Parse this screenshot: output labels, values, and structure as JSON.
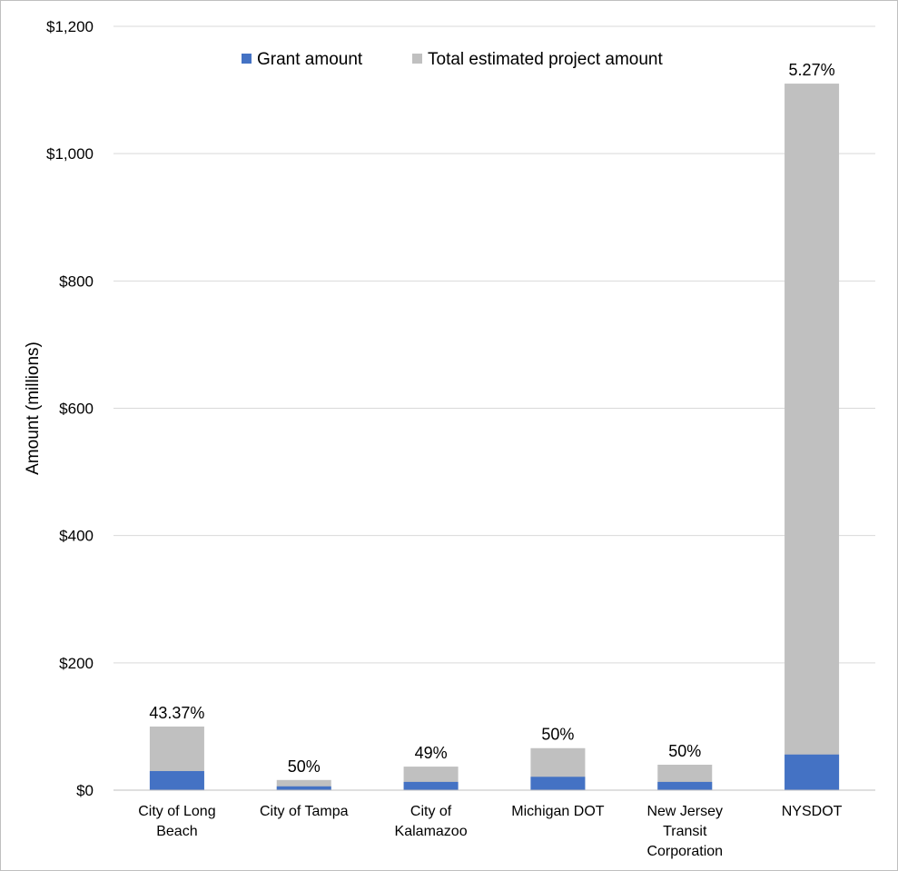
{
  "chart_data": {
    "type": "bar",
    "stacked": true,
    "title": "",
    "xlabel": "",
    "ylabel": "Amount (millions)",
    "ylim": [
      0,
      1200
    ],
    "yticks": [
      0,
      200,
      400,
      600,
      800,
      1000,
      1200
    ],
    "ytick_labels": [
      "$0",
      "$200",
      "$400",
      "$600",
      "$800",
      "$1,000",
      "$1,200"
    ],
    "grid": true,
    "legend_position": "top",
    "categories": [
      [
        "City of Long",
        "Beach"
      ],
      [
        "City of Tampa"
      ],
      [
        "City of",
        "Kalamazoo"
      ],
      [
        "Michigan DOT"
      ],
      [
        "New Jersey",
        "Transit",
        "Corporation"
      ],
      [
        "NYSDOT"
      ]
    ],
    "series": [
      {
        "name": "Grant amount",
        "color": "#4472c4",
        "values": [
          30,
          6,
          13,
          21,
          13,
          56
        ]
      },
      {
        "name": "Total estimated project amount",
        "color": "#c0c0c0",
        "values": [
          100,
          16,
          37,
          66,
          40,
          1110
        ]
      }
    ],
    "data_labels": [
      "43.37%",
      "50%",
      "49%",
      "50%",
      "50%",
      "5.27%"
    ]
  }
}
